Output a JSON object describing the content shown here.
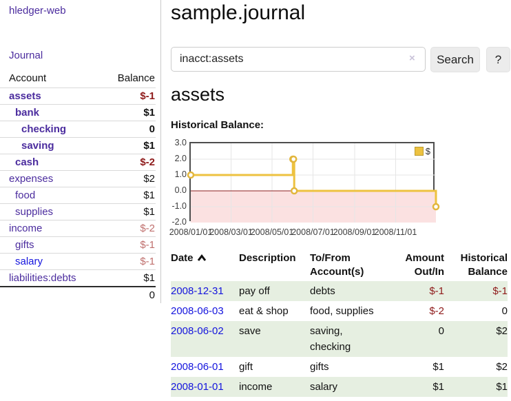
{
  "app": {
    "brand": "hledger-web",
    "nav_journal": "Journal"
  },
  "sidebar": {
    "table_headers": {
      "account": "Account",
      "balance": "Balance"
    },
    "accounts": [
      {
        "name": "assets",
        "depth": 0,
        "bold": true,
        "balance": "$-1",
        "balance_class": "neg-strong"
      },
      {
        "name": "bank",
        "depth": 1,
        "bold": true,
        "balance": "$1",
        "balance_class": ""
      },
      {
        "name": "checking",
        "depth": 2,
        "bold": true,
        "balance": "0",
        "balance_class": ""
      },
      {
        "name": "saving",
        "depth": 2,
        "bold": true,
        "balance": "$1",
        "balance_class": ""
      },
      {
        "name": "cash",
        "depth": 1,
        "bold": true,
        "balance": "$-2",
        "balance_class": "neg-strong"
      },
      {
        "name": "expenses",
        "depth": 0,
        "bold": false,
        "balance": "$2",
        "balance_class": ""
      },
      {
        "name": "food",
        "depth": 1,
        "bold": false,
        "balance": "$1",
        "balance_class": ""
      },
      {
        "name": "supplies",
        "depth": 1,
        "bold": false,
        "balance": "$1",
        "balance_class": ""
      },
      {
        "name": "income",
        "depth": 0,
        "bold": false,
        "balance": "$-2",
        "balance_class": "neg-soft"
      },
      {
        "name": "gifts",
        "depth": 1,
        "bold": false,
        "balance": "$-1",
        "balance_class": "neg-soft"
      },
      {
        "name": "salary",
        "depth": 1,
        "bold": false,
        "blue": true,
        "balance": "$-1",
        "balance_class": "neg-soft"
      },
      {
        "name": "liabilities:debts",
        "depth": 0,
        "bold": false,
        "balance": "$1",
        "balance_class": ""
      }
    ],
    "total": "0"
  },
  "header": {
    "title": "sample.journal"
  },
  "search": {
    "value": "inacct:assets",
    "clear_icon": "×",
    "button": "Search",
    "help_button": "?"
  },
  "account_page": {
    "heading": "assets",
    "chart_label": "Historical Balance:"
  },
  "chart_data": {
    "type": "line",
    "step": true,
    "title": "Historical Balance",
    "series": [
      {
        "name": "$",
        "color": "#edc240",
        "points": [
          [
            "2008-01-01",
            1
          ],
          [
            "2008-06-01",
            2
          ],
          [
            "2008-06-02",
            2
          ],
          [
            "2008-06-03",
            0
          ],
          [
            "2008-12-31",
            -1
          ]
        ]
      }
    ],
    "x_range": [
      "2008-01-01",
      "2008-12-31"
    ],
    "x_ticks": [
      "2008/01/01",
      "2008/03/01",
      "2008/05/01",
      "2008/07/01",
      "2008/09/01",
      "2008/11/01"
    ],
    "y_ticks": [
      "3.0",
      "2.0",
      "1.0",
      "0.0",
      "-1.0",
      "-2.0"
    ],
    "ylim": [
      -2,
      3
    ],
    "grid": true,
    "legend": "$",
    "legend_position": "top-right",
    "negative_fill": "#fbe1e1",
    "zero_line_color": "#8b1f1f"
  },
  "register": {
    "headers": {
      "date": "Date",
      "description": "Description",
      "accounts": "To/From Account(s)",
      "amount": "Amount Out/In",
      "balance": "Historical Balance"
    },
    "rows": [
      {
        "date": "2008-12-31",
        "description": "pay off",
        "accounts": "debts",
        "amount": "$-1",
        "balance": "$-1"
      },
      {
        "date": "2008-06-03",
        "description": "eat & shop",
        "accounts": "food, supplies",
        "amount": "$-2",
        "balance": "0"
      },
      {
        "date": "2008-06-02",
        "description": "save",
        "accounts": "saving, checking",
        "amount": "0",
        "balance": "$2"
      },
      {
        "date": "2008-06-01",
        "description": "gift",
        "accounts": "gifts",
        "amount": "$1",
        "balance": "$2"
      },
      {
        "date": "2008-01-01",
        "description": "income",
        "accounts": "salary",
        "amount": "$1",
        "balance": "$1"
      }
    ]
  },
  "colors": {
    "link_purple": "#4b2c9e",
    "link_blue": "#1414dd",
    "negative_strong": "#8e1a1a",
    "negative_soft": "#bf6f6d",
    "row_stripe_green": "#e6efe1",
    "chart_line_gold": "#edc240"
  }
}
